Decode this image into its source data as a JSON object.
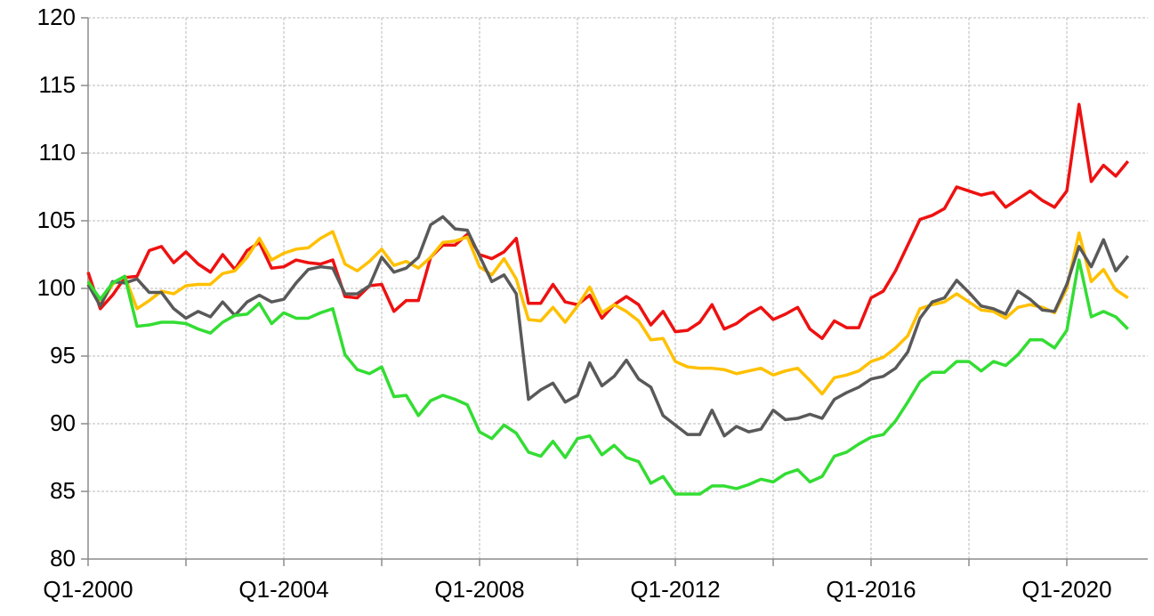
{
  "chart_data": {
    "type": "line",
    "categories": [
      "Q1-2000",
      null,
      null,
      null,
      null,
      null,
      null,
      null,
      null,
      null,
      null,
      null,
      null,
      null,
      null,
      null,
      "Q1-2004",
      null,
      null,
      null,
      null,
      null,
      null,
      null,
      null,
      null,
      null,
      null,
      null,
      null,
      null,
      null,
      "Q1-2008",
      null,
      null,
      null,
      null,
      null,
      null,
      null,
      null,
      null,
      null,
      null,
      null,
      null,
      null,
      null,
      "Q1-2012",
      null,
      null,
      null,
      null,
      null,
      null,
      null,
      null,
      null,
      null,
      null,
      null,
      null,
      null,
      null,
      "Q1-2016",
      null,
      null,
      null,
      null,
      null,
      null,
      null,
      null,
      null,
      null,
      null,
      null,
      null,
      null,
      null,
      "Q1-2020",
      null,
      null,
      null,
      null,
      null
    ],
    "series": [
      {
        "color": "#ee1111",
        "values": [
          101.2,
          98.5,
          99.5,
          100.8,
          100.9,
          102.8,
          103.1,
          101.9,
          102.7,
          101.8,
          101.2,
          102.5,
          101.4,
          102.8,
          103.4,
          101.5,
          101.6,
          102.1,
          101.9,
          101.8,
          102.1,
          99.4,
          99.3,
          100.2,
          100.3,
          98.3,
          99.1,
          99.1,
          102.3,
          103.2,
          103.2,
          104.0,
          102.5,
          102.2,
          102.7,
          103.7,
          98.9,
          98.9,
          100.3,
          99.0,
          98.8,
          99.5,
          97.8,
          98.8,
          99.4,
          98.8,
          97.3,
          98.3,
          96.8,
          96.9,
          97.5,
          98.8,
          97.0,
          97.4,
          98.1,
          98.6,
          97.7,
          98.1,
          98.6,
          97.0,
          96.3,
          97.6,
          97.1,
          97.1,
          99.3,
          99.8,
          101.3,
          103.2,
          105.1,
          105.4,
          105.9,
          107.5,
          107.2,
          106.9,
          107.1,
          106.0,
          106.6,
          107.2,
          106.5,
          106.0,
          107.2,
          113.6,
          107.9,
          109.1,
          108.3,
          109.4
        ]
      },
      {
        "color": "#ffc000",
        "values": [
          100.5,
          98.8,
          100.3,
          100.9,
          98.5,
          99.1,
          99.8,
          99.6,
          100.2,
          100.3,
          100.3,
          101.1,
          101.3,
          102.3,
          103.7,
          102.1,
          102.6,
          102.9,
          103.0,
          103.7,
          104.2,
          101.8,
          101.3,
          102.0,
          102.9,
          101.7,
          102.0,
          101.5,
          102.3,
          103.4,
          103.5,
          103.8,
          101.6,
          101.0,
          102.2,
          100.7,
          97.7,
          97.6,
          98.6,
          97.5,
          98.7,
          100.1,
          98.2,
          98.8,
          98.3,
          97.6,
          96.2,
          96.3,
          94.6,
          94.2,
          94.1,
          94.1,
          94.0,
          93.7,
          93.9,
          94.1,
          93.6,
          93.9,
          94.1,
          93.2,
          92.2,
          93.4,
          93.6,
          93.9,
          94.6,
          94.9,
          95.6,
          96.5,
          98.5,
          98.8,
          99.0,
          99.6,
          99.0,
          98.4,
          98.3,
          97.8,
          98.6,
          98.8,
          98.6,
          98.2,
          100.0,
          104.1,
          100.5,
          101.4,
          99.9,
          99.3
        ]
      },
      {
        "color": "#595959",
        "values": [
          100.3,
          98.7,
          100.5,
          100.4,
          100.7,
          99.7,
          99.7,
          98.5,
          97.8,
          98.3,
          97.9,
          99.0,
          98.0,
          99.0,
          99.5,
          99.0,
          99.2,
          100.4,
          101.4,
          101.6,
          101.5,
          99.6,
          99.6,
          100.2,
          102.3,
          101.2,
          101.5,
          102.3,
          104.7,
          105.3,
          104.4,
          104.3,
          102.4,
          100.5,
          101.0,
          99.6,
          91.8,
          92.5,
          93.0,
          91.6,
          92.1,
          94.5,
          92.8,
          93.5,
          94.7,
          93.3,
          92.7,
          90.6,
          89.9,
          89.2,
          89.2,
          91.0,
          89.1,
          89.8,
          89.4,
          89.6,
          91.0,
          90.3,
          90.4,
          90.7,
          90.4,
          91.8,
          92.3,
          92.7,
          93.3,
          93.5,
          94.1,
          95.3,
          97.8,
          99.0,
          99.3,
          100.6,
          99.7,
          98.7,
          98.5,
          98.1,
          99.8,
          99.2,
          98.4,
          98.3,
          100.3,
          103.1,
          101.6,
          103.6,
          101.3,
          102.4
        ]
      },
      {
        "color": "#33dd33",
        "values": [
          100.5,
          99.2,
          100.4,
          100.9,
          97.2,
          97.3,
          97.5,
          97.5,
          97.4,
          97.0,
          96.7,
          97.5,
          98.0,
          98.1,
          98.9,
          97.4,
          98.2,
          97.8,
          97.8,
          98.2,
          98.5,
          95.1,
          94.0,
          93.7,
          94.2,
          92.0,
          92.1,
          90.6,
          91.7,
          92.1,
          91.8,
          91.4,
          89.4,
          88.9,
          89.9,
          89.3,
          87.9,
          87.6,
          88.7,
          87.5,
          88.9,
          89.1,
          87.7,
          88.4,
          87.5,
          87.2,
          85.6,
          86.1,
          84.8,
          84.8,
          84.8,
          85.4,
          85.4,
          85.2,
          85.5,
          85.9,
          85.7,
          86.3,
          86.6,
          85.7,
          86.1,
          87.6,
          87.9,
          88.5,
          89.0,
          89.2,
          90.2,
          91.6,
          93.1,
          93.8,
          93.8,
          94.6,
          94.6,
          93.9,
          94.6,
          94.3,
          95.1,
          96.2,
          96.2,
          95.6,
          96.9,
          102.1,
          97.9,
          98.3,
          97.9,
          97.0
        ]
      }
    ],
    "ylim": [
      80,
      120
    ],
    "yticks": [
      80,
      85,
      90,
      95,
      100,
      105,
      110,
      115,
      120
    ],
    "grid": true
  }
}
